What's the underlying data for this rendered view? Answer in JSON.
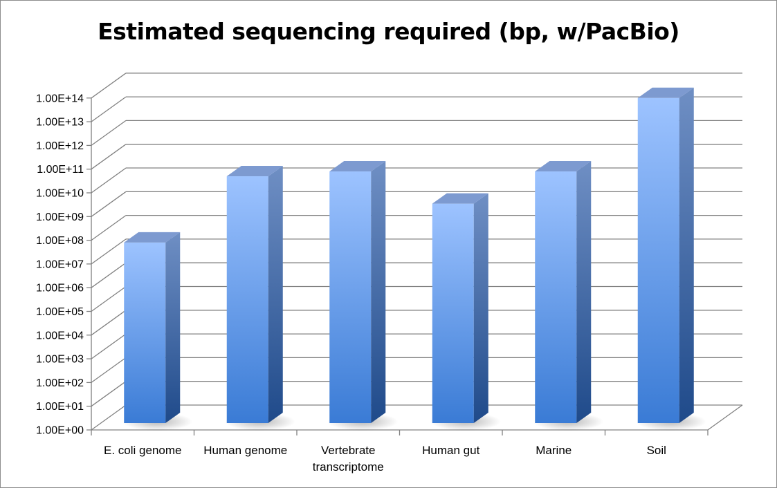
{
  "chart_data": {
    "type": "bar",
    "title": "Estimated sequencing required (bp, w/PacBio)",
    "xlabel": "",
    "ylabel": "",
    "yscale": "log10",
    "ylim": [
      1,
      100000000000000.0
    ],
    "yticks": [
      "1.00E+00",
      "1.00E+01",
      "1.00E+02",
      "1.00E+03",
      "1.00E+04",
      "1.00E+05",
      "1.00E+06",
      "1.00E+07",
      "1.00E+08",
      "1.00E+09",
      "1.00E+10",
      "1.00E+11",
      "1.00E+12",
      "1.00E+13",
      "1.00E+14"
    ],
    "categories": [
      [
        "E. coli genome"
      ],
      [
        "Human genome"
      ],
      [
        "Vertebrate",
        "transcriptome"
      ],
      [
        "Human gut"
      ],
      [
        "Marine"
      ],
      [
        "Soil"
      ]
    ],
    "values": [
      80000000.0,
      50000000000.0,
      80000000000.0,
      3500000000.0,
      80000000000.0,
      100000000000000.0
    ],
    "grid": true,
    "legend": "none",
    "colors": {
      "bar_front_light": "#9dc3ff",
      "bar_front_dark": "#3a7bd5",
      "bar_side_light": "#6f8fc4",
      "bar_side_dark": "#1f4a8a",
      "bar_top": "#7d9ad0",
      "grid": "#808080"
    }
  }
}
